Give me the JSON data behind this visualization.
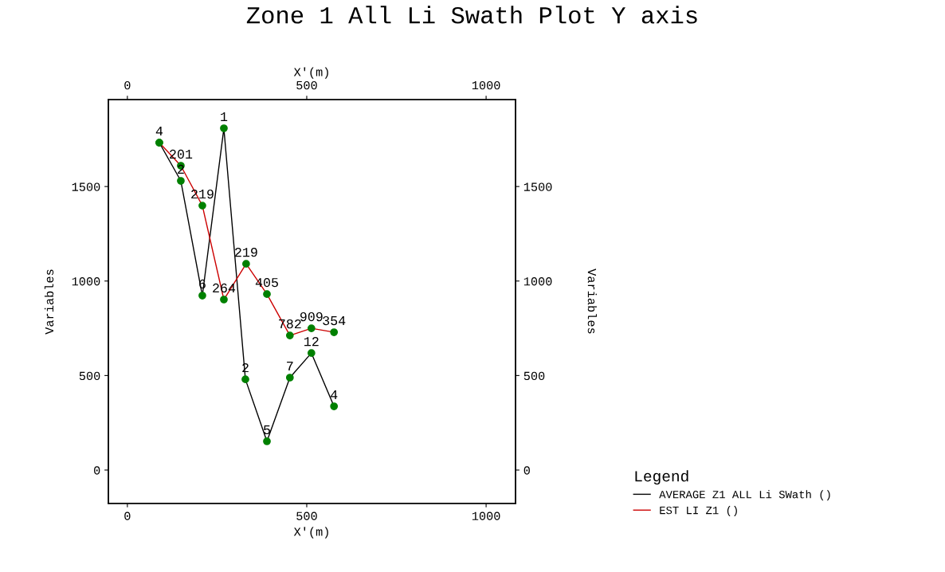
{
  "chart_data": {
    "type": "line",
    "title": "Zone 1 All Li Swath Plot Y axis",
    "xlabel": "X'(m)",
    "x2label": "X'(m)",
    "ylabel": "Variables",
    "y2label": "Variables",
    "legend_title": "Legend",
    "xlim": [
      -53,
      1082
    ],
    "xticks": [
      0,
      500,
      1000
    ],
    "x2lim": [
      -53,
      1082
    ],
    "x2ticks": [
      0,
      500,
      1000
    ],
    "ylim": [
      -177,
      1960
    ],
    "yticks": [
      0,
      500,
      1000,
      1500
    ],
    "y2lim": [
      -177,
      1960
    ],
    "y2ticks": [
      0,
      500,
      1000,
      1500
    ],
    "grid": false,
    "legend": "bottom right",
    "marker": "circle",
    "line_style": "solid",
    "series": [
      {
        "name": "AVERAGE Z1 ALL Li SWath ()",
        "color": "#000000",
        "colors": [
          "#008000",
          "#008000",
          "#008000",
          "#008000",
          "#008000",
          "#008000",
          "#008000",
          "#008000",
          "#008000"
        ],
        "x": [
          89,
          149,
          209,
          269,
          329,
          389,
          453,
          513,
          576
        ],
        "values": [
          1732,
          1530,
          923,
          1808,
          480,
          152,
          489,
          619,
          337
        ]
      },
      {
        "name": "EST LI Z1 ()",
        "color": "#cc0000",
        "colors": [
          "#008000",
          "#008000",
          "#008000",
          "#008000",
          "#008000",
          "#008000",
          "#008000",
          "#008000",
          "#008000"
        ],
        "x": [
          89,
          149,
          209,
          269,
          331,
          389,
          453,
          513,
          576
        ],
        "values": [
          1732,
          1610,
          1399,
          902,
          1091,
          931,
          712,
          750,
          729
        ]
      }
    ],
    "annotations": [
      {
        "text": "4",
        "x": 89,
        "y": 1732
      },
      {
        "text": "2",
        "x": 149,
        "y": 1530
      },
      {
        "text": "6",
        "x": 209,
        "y": 923
      },
      {
        "text": "1",
        "x": 269,
        "y": 1808
      },
      {
        "text": "2",
        "x": 329,
        "y": 480
      },
      {
        "text": "5",
        "x": 389,
        "y": 152
      },
      {
        "text": "7",
        "x": 453,
        "y": 489
      },
      {
        "text": "12",
        "x": 513,
        "y": 619
      },
      {
        "text": "4",
        "x": 576,
        "y": 337
      },
      {
        "text": "201",
        "x": 149,
        "y": 1610
      },
      {
        "text": "219",
        "x": 209,
        "y": 1399
      },
      {
        "text": "264",
        "x": 269,
        "y": 902
      },
      {
        "text": "219",
        "x": 331,
        "y": 1091
      },
      {
        "text": "405",
        "x": 389,
        "y": 931
      },
      {
        "text": "782",
        "x": 453,
        "y": 712
      },
      {
        "text": "909",
        "x": 513,
        "y": 750
      },
      {
        "text": "354",
        "x": 576,
        "y": 729
      }
    ]
  }
}
